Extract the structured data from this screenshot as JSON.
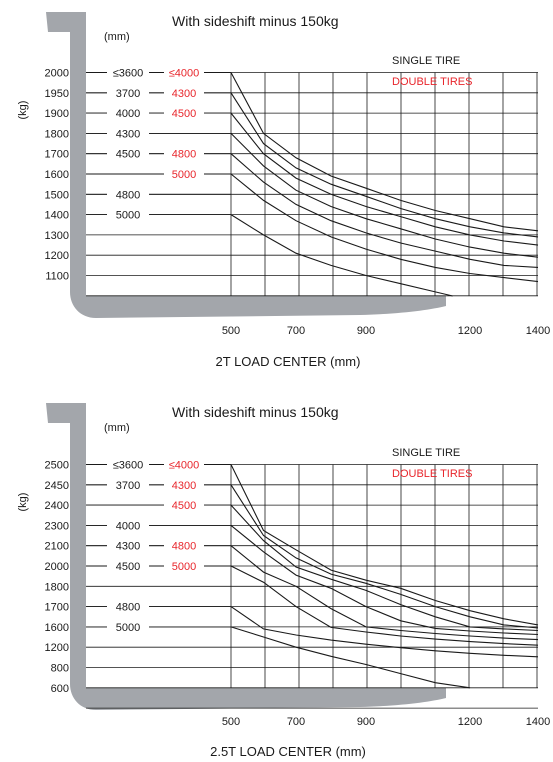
{
  "colors": {
    "fork": "#a3a6ab",
    "red": "#e8262c",
    "ink": "#1a1a1a",
    "grid": "#1a1a1a"
  },
  "chart_data": [
    {
      "type": "line",
      "title": "With sideshift minus 150kg",
      "xlabel": "2T LOAD CENTER  (mm)",
      "ylabel": "(kg)",
      "mast_unit": "(mm)",
      "legend": {
        "single": "SINGLE TIRE",
        "double": "DOUBLE TIRES",
        "position": "top-right"
      },
      "x_ticks": [
        "500",
        "700",
        "900",
        "1200",
        "1400"
      ],
      "y_ticks": [
        "2000",
        "1950",
        "1900",
        "1800",
        "1700",
        "1600",
        "1500",
        "1400",
        "1300",
        "1200",
        "1100"
      ],
      "mast_rows": [
        {
          "single": "≤3600",
          "double": "≤4000"
        },
        {
          "single": "3700",
          "double": "4300"
        },
        {
          "single": "4000",
          "double": "4500"
        },
        {
          "single": "4300",
          "double": ""
        },
        {
          "single": "4500",
          "double": "4800"
        },
        {
          "single": "",
          "double": "5000"
        },
        {
          "single": "4800",
          "double": ""
        },
        {
          "single": "5000",
          "double": ""
        }
      ],
      "series": [
        {
          "values": [
            [
              500,
              2000
            ],
            [
              600,
              1800
            ],
            [
              700,
              1680
            ],
            [
              800,
              1590
            ],
            [
              900,
              1530
            ],
            [
              1000,
              1470
            ],
            [
              1100,
              1420
            ],
            [
              1200,
              1380
            ],
            [
              1300,
              1340
            ],
            [
              1400,
              1320
            ]
          ]
        },
        {
          "values": [
            [
              500,
              1950
            ],
            [
              600,
              1750
            ],
            [
              700,
              1630
            ],
            [
              800,
              1550
            ],
            [
              900,
              1490
            ],
            [
              1000,
              1430
            ],
            [
              1100,
              1380
            ],
            [
              1200,
              1340
            ],
            [
              1300,
              1310
            ],
            [
              1400,
              1290
            ]
          ]
        },
        {
          "values": [
            [
              500,
              1900
            ],
            [
              600,
              1700
            ],
            [
              700,
              1580
            ],
            [
              800,
              1500
            ],
            [
              900,
              1440
            ],
            [
              1000,
              1390
            ],
            [
              1100,
              1340
            ],
            [
              1200,
              1300
            ],
            [
              1300,
              1270
            ],
            [
              1400,
              1250
            ]
          ]
        },
        {
          "values": [
            [
              500,
              1800
            ],
            [
              600,
              1640
            ],
            [
              700,
              1520
            ],
            [
              800,
              1440
            ],
            [
              900,
              1380
            ],
            [
              1000,
              1330
            ],
            [
              1100,
              1280
            ],
            [
              1200,
              1240
            ],
            [
              1300,
              1210
            ],
            [
              1400,
              1190
            ]
          ]
        },
        {
          "values": [
            [
              500,
              1700
            ],
            [
              600,
              1560
            ],
            [
              700,
              1450
            ],
            [
              800,
              1370
            ],
            [
              900,
              1310
            ],
            [
              1000,
              1260
            ],
            [
              1100,
              1220
            ],
            [
              1200,
              1180
            ],
            [
              1300,
              1150
            ],
            [
              1400,
              1140
            ]
          ]
        },
        {
          "values": [
            [
              500,
              1600
            ],
            [
              600,
              1470
            ],
            [
              700,
              1370
            ],
            [
              800,
              1290
            ],
            [
              900,
              1230
            ],
            [
              1000,
              1180
            ],
            [
              1100,
              1140
            ],
            [
              1200,
              1110
            ],
            [
              1300,
              1090
            ],
            [
              1400,
              1070
            ]
          ]
        },
        {
          "values": [
            [
              500,
              1400
            ],
            [
              600,
              1300
            ],
            [
              700,
              1210
            ],
            [
              800,
              1150
            ],
            [
              900,
              1100
            ],
            [
              1000,
              1060
            ],
            [
              1100,
              1020
            ],
            [
              1150,
              1000
            ]
          ]
        }
      ]
    },
    {
      "type": "line",
      "title": "With sideshift minus 150kg",
      "xlabel": "2.5T LOAD CENTER  (mm)",
      "ylabel": "(kg)",
      "mast_unit": "(mm)",
      "legend": {
        "single": "SINGLE TIRE",
        "double": "DOUBLE TIRES",
        "position": "top-right"
      },
      "x_ticks": [
        "500",
        "700",
        "900",
        "1200",
        "1400"
      ],
      "y_ticks": [
        "2500",
        "2450",
        "2400",
        "2300",
        "2100",
        "2000",
        "1800",
        "1700",
        "1600",
        "1200",
        "800",
        "600"
      ],
      "mast_rows": [
        {
          "single": "≤3600",
          "double": "≤4000"
        },
        {
          "single": "3700",
          "double": "4300"
        },
        {
          "single": "",
          "double": "4500"
        },
        {
          "single": "4000",
          "double": ""
        },
        {
          "single": "4300",
          "double": "4800"
        },
        {
          "single": "4500",
          "double": "5000"
        },
        {
          "single": "",
          "double": ""
        },
        {
          "single": "4800",
          "double": ""
        },
        {
          "single": "5000",
          "double": ""
        }
      ],
      "series": [
        {
          "values": [
            [
              500,
              2500
            ],
            [
              600,
              2250
            ],
            [
              700,
              2080
            ],
            [
              800,
              1960
            ],
            [
              900,
              1860
            ],
            [
              1000,
              1790
            ],
            [
              1100,
              1730
            ],
            [
              1200,
              1680
            ],
            [
              1300,
              1640
            ],
            [
              1400,
              1610
            ]
          ]
        },
        {
          "values": [
            [
              500,
              2450
            ],
            [
              600,
              2200
            ],
            [
              700,
              2040
            ],
            [
              800,
              1920
            ],
            [
              900,
              1830
            ],
            [
              1000,
              1760
            ],
            [
              1100,
              1700
            ],
            [
              1200,
              1650
            ],
            [
              1300,
              1610
            ],
            [
              1400,
              1580
            ]
          ]
        },
        {
          "values": [
            [
              500,
              2400
            ],
            [
              600,
              2150
            ],
            [
              700,
              1990
            ],
            [
              800,
              1870
            ],
            [
              900,
              1780
            ],
            [
              1000,
              1710
            ],
            [
              1100,
              1650
            ],
            [
              1200,
              1600
            ],
            [
              1300,
              1560
            ],
            [
              1400,
              1530
            ]
          ]
        },
        {
          "values": [
            [
              500,
              2300
            ],
            [
              600,
              2070
            ],
            [
              700,
              1910
            ],
            [
              800,
              1790
            ],
            [
              900,
              1700
            ],
            [
              1000,
              1630
            ],
            [
              1100,
              1570
            ],
            [
              1200,
              1520
            ],
            [
              1300,
              1480
            ],
            [
              1400,
              1450
            ]
          ]
        },
        {
          "values": [
            [
              500,
              2100
            ],
            [
              600,
              1940
            ],
            [
              700,
              1800
            ],
            [
              800,
              1690
            ],
            [
              900,
              1600
            ],
            [
              1000,
              1530
            ],
            [
              1100,
              1470
            ],
            [
              1200,
              1420
            ],
            [
              1300,
              1380
            ],
            [
              1400,
              1350
            ]
          ]
        },
        {
          "values": [
            [
              500,
              2000
            ],
            [
              600,
              1840
            ],
            [
              700,
              1700
            ],
            [
              800,
              1590
            ],
            [
              900,
              1500
            ],
            [
              1000,
              1420
            ],
            [
              1100,
              1360
            ],
            [
              1200,
              1310
            ],
            [
              1300,
              1270
            ],
            [
              1400,
              1240
            ]
          ]
        },
        {
          "values": [
            [
              500,
              1700
            ],
            [
              600,
              1560
            ],
            [
              700,
              1440
            ],
            [
              800,
              1340
            ],
            [
              900,
              1260
            ],
            [
              1000,
              1190
            ],
            [
              1100,
              1130
            ],
            [
              1200,
              1080
            ],
            [
              1300,
              1040
            ],
            [
              1400,
              1010
            ]
          ]
        },
        {
          "values": [
            [
              500,
              1600
            ],
            [
              600,
              1400
            ],
            [
              700,
              1200
            ],
            [
              800,
              1020
            ],
            [
              900,
              860
            ],
            [
              1000,
              740
            ],
            [
              1100,
              650
            ],
            [
              1200,
              600
            ]
          ]
        }
      ]
    }
  ]
}
